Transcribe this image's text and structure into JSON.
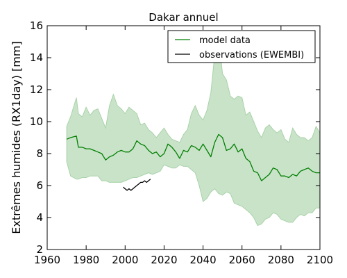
{
  "chart_data": {
    "type": "line",
    "title": "Dakar annuel",
    "xlabel": "",
    "ylabel": "Extrêmes humides (RX1day) [mm]",
    "xlim": [
      1960,
      2100
    ],
    "ylim": [
      2,
      16
    ],
    "xticks": [
      1960,
      1980,
      2000,
      2020,
      2040,
      2060,
      2080,
      2100
    ],
    "yticks": [
      2,
      4,
      6,
      8,
      10,
      12,
      14,
      16
    ],
    "grid": false,
    "legend_position": "top-right",
    "colors": {
      "model": "#007f00",
      "observations": "#000000",
      "band_fill": "#c9e3c9",
      "band_edge": "#a9d2a9"
    },
    "series": [
      {
        "name": "model data",
        "x": [
          1970,
          1972,
          1975,
          1976,
          1978,
          1980,
          1982,
          1984,
          1986,
          1988,
          1990,
          1992,
          1994,
          1996,
          1998,
          2000,
          2002,
          2004,
          2006,
          2008,
          2010,
          2012,
          2014,
          2016,
          2018,
          2020,
          2022,
          2024,
          2026,
          2028,
          2030,
          2032,
          2034,
          2036,
          2038,
          2040,
          2042,
          2044,
          2046,
          2048,
          2050,
          2052,
          2054,
          2056,
          2058,
          2060,
          2062,
          2064,
          2066,
          2068,
          2070,
          2072,
          2074,
          2076,
          2078,
          2080,
          2082,
          2084,
          2086,
          2088,
          2090,
          2092,
          2094,
          2096,
          2098,
          2100
        ],
        "values": [
          8.9,
          9.0,
          9.1,
          8.4,
          8.4,
          8.3,
          8.3,
          8.2,
          8.1,
          8.0,
          7.6,
          7.8,
          7.9,
          8.1,
          8.2,
          8.1,
          8.1,
          8.3,
          8.8,
          8.6,
          8.5,
          8.2,
          8.0,
          8.1,
          7.8,
          8.0,
          8.6,
          8.4,
          8.1,
          7.7,
          8.2,
          8.1,
          8.5,
          8.4,
          8.2,
          8.6,
          8.2,
          7.8,
          8.7,
          9.2,
          9.0,
          8.2,
          8.3,
          8.6,
          8.1,
          8.3,
          7.7,
          7.5,
          6.9,
          6.8,
          6.3,
          6.5,
          6.7,
          7.1,
          7.0,
          6.6,
          6.6,
          6.5,
          6.7,
          6.6,
          6.9,
          7.0,
          7.1,
          6.9,
          6.8,
          6.8
        ],
        "range_low": [
          7.5,
          6.6,
          6.4,
          6.4,
          6.5,
          6.5,
          6.6,
          6.6,
          6.6,
          6.3,
          6.3,
          6.2,
          6.2,
          6.2,
          6.2,
          6.3,
          6.4,
          6.5,
          6.5,
          6.6,
          6.7,
          6.8,
          6.7,
          6.8,
          6.9,
          7.3,
          7.2,
          7.1,
          7.1,
          7.3,
          7.2,
          7.2,
          7.0,
          6.8,
          6.0,
          5.0,
          5.2,
          5.6,
          5.8,
          5.5,
          5.4,
          5.6,
          5.5,
          4.9,
          4.8,
          4.7,
          4.5,
          4.3,
          4.0,
          3.5,
          3.6,
          3.9,
          4.0,
          4.3,
          4.2,
          3.9,
          3.8,
          3.7,
          3.7,
          4.0,
          4.2,
          4.1,
          4.3,
          4.3,
          4.6,
          4.6
        ],
        "range_high": [
          9.7,
          10.3,
          11.5,
          10.5,
          10.3,
          10.9,
          10.4,
          10.7,
          10.8,
          10.2,
          9.6,
          11.0,
          11.7,
          11.0,
          10.8,
          10.5,
          10.9,
          10.7,
          10.5,
          9.8,
          9.9,
          9.5,
          9.3,
          9.0,
          9.3,
          9.6,
          9.2,
          8.9,
          8.8,
          8.7,
          9.2,
          9.5,
          10.5,
          11.0,
          10.4,
          10.1,
          10.7,
          11.8,
          14.2,
          15.4,
          13.0,
          12.6,
          11.6,
          11.4,
          11.6,
          11.5,
          10.4,
          10.6,
          10.0,
          9.4,
          9.0,
          9.6,
          9.8,
          9.5,
          9.3,
          9.5,
          8.9,
          8.7,
          9.6,
          9.2,
          9.0,
          9.0,
          8.8,
          9.0,
          9.7,
          9.3
        ]
      },
      {
        "name": "observations (EWEMBI)",
        "x": [
          1999,
          2000,
          2001,
          2002,
          2003,
          2004,
          2005,
          2006,
          2007,
          2008,
          2009,
          2010,
          2011,
          2012,
          2013
        ],
        "values": [
          5.9,
          5.8,
          5.7,
          5.8,
          5.7,
          5.8,
          5.9,
          6.0,
          6.1,
          6.2,
          6.2,
          6.3,
          6.2,
          6.3,
          6.4
        ]
      }
    ]
  }
}
